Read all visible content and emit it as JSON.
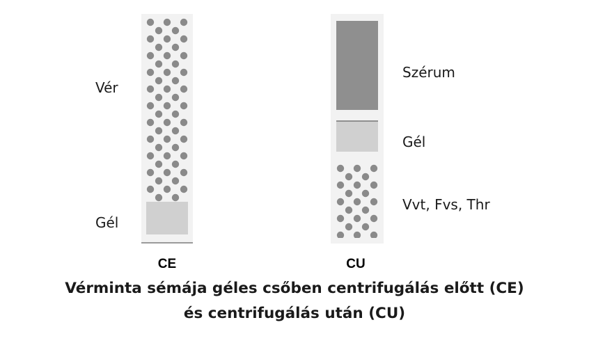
{
  "tubes": {
    "ce": {
      "name": "CE",
      "layers": {
        "blood": "Vér",
        "gel": "Gél"
      }
    },
    "cu": {
      "name": "CU",
      "layers": {
        "serum": "Szérum",
        "gel": "Gél",
        "cells": "Vvt, Fvs, Thr"
      }
    }
  },
  "caption": {
    "line1": "Vérminta sémája géles csőben centrifugálás előtt (CE)",
    "line2": "és centrifugálás után (CU)"
  },
  "colors": {
    "tube_body": "#f2f2f2",
    "cell_dot": "#8a8a8a",
    "gel": "#d0d0d0",
    "serum": "#8f8f8f"
  }
}
